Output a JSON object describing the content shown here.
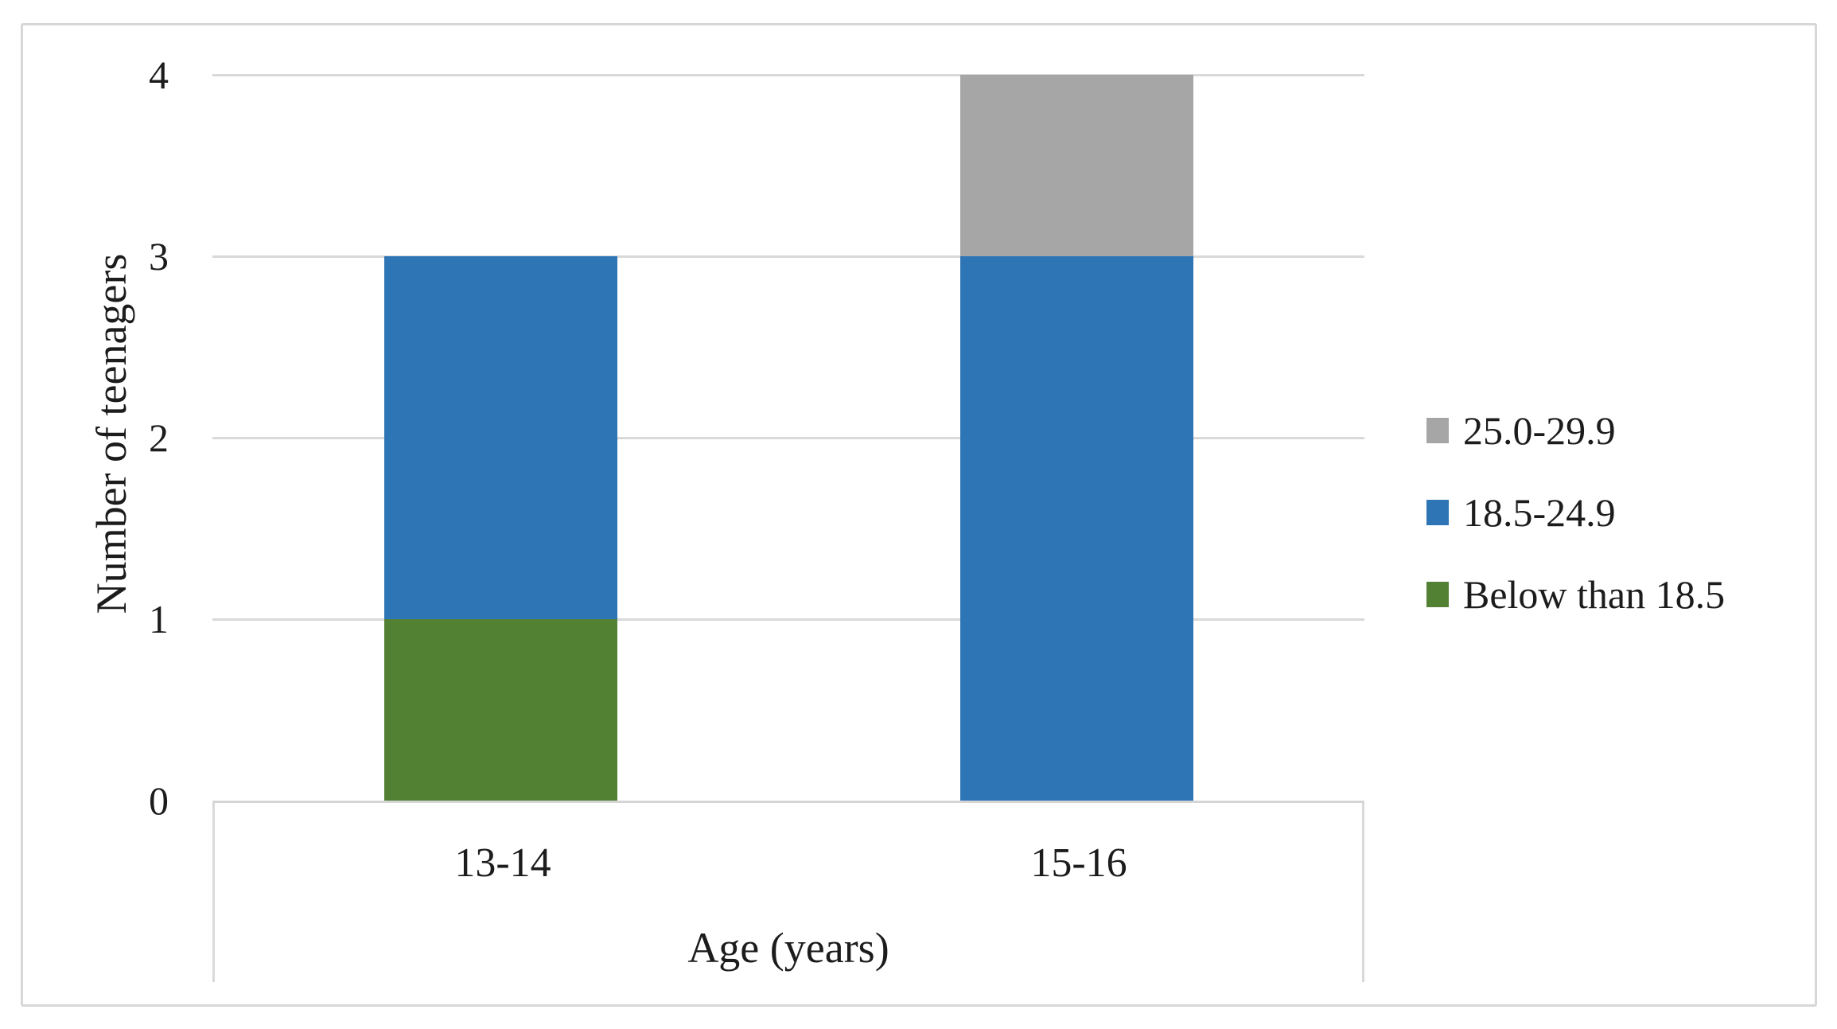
{
  "chart_data": {
    "type": "bar",
    "stacked": true,
    "orientation": "vertical",
    "title": "",
    "xlabel": "Age (years)",
    "ylabel": "Number of teenagers",
    "categories": [
      "13-14",
      "15-16"
    ],
    "series": [
      {
        "name": "Below than 18.5",
        "color": "#538134",
        "values": [
          1,
          0
        ]
      },
      {
        "name": "18.5-24.9",
        "color": "#2e75b6",
        "values": [
          2,
          3
        ]
      },
      {
        "name": "25.0-29.9",
        "color": "#a6a6a6",
        "values": [
          0,
          1
        ]
      }
    ],
    "totals_by_category": [
      3,
      4
    ],
    "ylim": [
      0,
      4
    ],
    "yticks": [
      0,
      1,
      2,
      3,
      4
    ],
    "grid": "horizontal",
    "legend_position": "right-middle",
    "legend_order_top_to_bottom": [
      "25.0-29.9",
      "18.5-24.9",
      "Below than 18.5"
    ]
  },
  "colors": {
    "gridline": "#d9d9d9",
    "axis_line": "#d5d5d5",
    "frame_border": "#d7d7d7",
    "text": "#1c1c1c",
    "background": "#ffffff"
  }
}
